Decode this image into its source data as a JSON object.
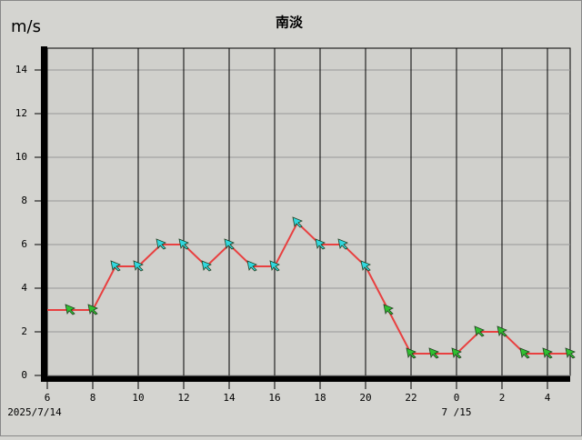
{
  "chart_data": {
    "type": "line",
    "title": "南淡",
    "y_unit": "m/s",
    "x": [
      6,
      7,
      8,
      9,
      10,
      11,
      12,
      13,
      14,
      15,
      16,
      17,
      18,
      19,
      20,
      21,
      22,
      23,
      24,
      25,
      26,
      27,
      28,
      29
    ],
    "series": [
      {
        "name": "wind",
        "color": "#e84040",
        "values": [
          3,
          3,
          3,
          5,
          5,
          6,
          6,
          5,
          6,
          5,
          5,
          7,
          6,
          6,
          5,
          3,
          1,
          1,
          1,
          2,
          2,
          1,
          1,
          1
        ],
        "marker_colors": [
          null,
          "#30c030",
          "#30c030",
          "#30d8e0",
          "#30d8e0",
          "#30d8e0",
          "#30d8e0",
          "#30d8e0",
          "#30d8e0",
          "#30d8e0",
          "#30d8e0",
          "#30d8e0",
          "#30d8e0",
          "#30d8e0",
          "#30d8e0",
          "#30c030",
          "#30c030",
          "#30c030",
          "#30c030",
          "#30c030",
          "#30c030",
          "#30c030",
          "#30c030",
          "#30c030"
        ]
      }
    ],
    "xlim": [
      6,
      29
    ],
    "ylim": [
      0,
      15
    ],
    "xticks": [
      6,
      8,
      10,
      12,
      14,
      16,
      18,
      20,
      22,
      {
        "value": 24,
        "label": "0"
      },
      {
        "value": 26,
        "label": "2"
      },
      {
        "value": 28,
        "label": "4"
      }
    ],
    "yticks": [
      0,
      2,
      4,
      6,
      8,
      10,
      12,
      14
    ],
    "date_labels": [
      {
        "value": 6,
        "label": "2025/7/14"
      },
      {
        "value": 24,
        "label": "7 /15"
      }
    ],
    "grid": true
  }
}
